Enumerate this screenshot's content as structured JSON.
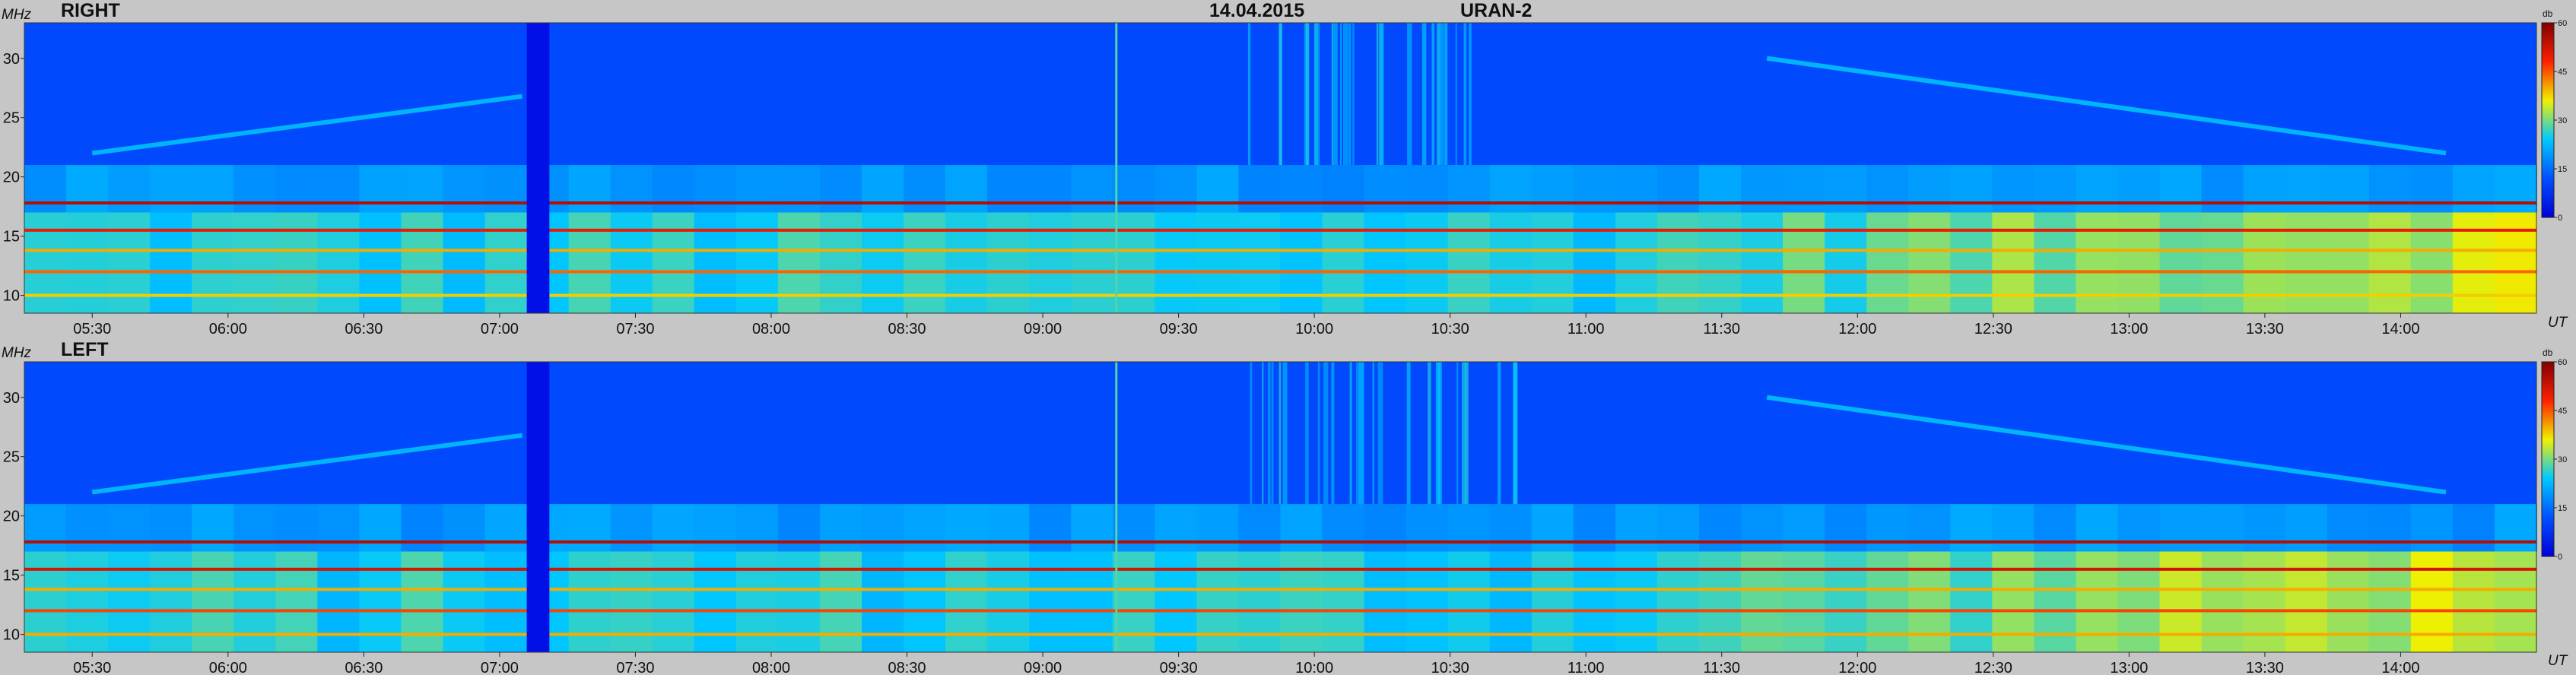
{
  "header": {
    "date": "14.04.2015",
    "instrument": "URAN-2"
  },
  "colors": {
    "background": "#c6c6c6",
    "colormap": [
      "#0000d8",
      "#0050ff",
      "#00c8ff",
      "#f0f000",
      "#ff2000",
      "#800000"
    ]
  },
  "chart_data": [
    {
      "type": "heatmap",
      "panel_title": "RIGHT",
      "ylabel": "MHz",
      "xlabel": "UT",
      "ylim": [
        8.5,
        33
      ],
      "yticks": [
        10,
        15,
        20,
        25,
        30
      ],
      "xlim": [
        "05:15",
        "14:30"
      ],
      "xticks": [
        "05:30",
        "06:00",
        "06:30",
        "07:00",
        "07:30",
        "08:00",
        "08:30",
        "09:00",
        "09:30",
        "10:00",
        "10:30",
        "11:00",
        "11:30",
        "12:00",
        "12:30",
        "13:00",
        "13:30",
        "14:00"
      ],
      "colorbar": {
        "label": "db",
        "ticks": [
          0,
          15,
          30,
          45,
          60
        ],
        "range": [
          0,
          60
        ]
      },
      "gap": {
        "start": "07:06",
        "end": "07:11"
      },
      "bands": [
        {
          "freq": 17.8,
          "level": 55
        },
        {
          "freq": 15.5,
          "level": 50
        },
        {
          "freq": 12.0,
          "level": 44
        },
        {
          "freq": 13.8,
          "level": 40
        },
        {
          "freq": 10.0,
          "level": 38
        }
      ],
      "drifting_bursts": [
        {
          "start": "05:30",
          "end": "07:05",
          "freq_start": 22.0,
          "freq_end": 26.8
        },
        {
          "start": "11:40",
          "end": "14:10",
          "freq_start": 30.0,
          "freq_end": 22.0
        }
      ]
    },
    {
      "type": "heatmap",
      "panel_title": "LEFT",
      "ylabel": "MHz",
      "xlabel": "UT",
      "ylim": [
        8.5,
        33
      ],
      "yticks": [
        10,
        15,
        20,
        25,
        30
      ],
      "xlim": [
        "05:15",
        "14:30"
      ],
      "xticks": [
        "05:30",
        "06:00",
        "06:30",
        "07:00",
        "07:30",
        "08:00",
        "08:30",
        "09:00",
        "09:30",
        "10:00",
        "10:30",
        "11:00",
        "11:30",
        "12:00",
        "12:30",
        "13:00",
        "13:30",
        "14:00"
      ],
      "colorbar": {
        "label": "db",
        "ticks": [
          0,
          15,
          30,
          45,
          60
        ],
        "range": [
          0,
          60
        ]
      },
      "gap": {
        "start": "07:06",
        "end": "07:11"
      },
      "bands": [
        {
          "freq": 17.8,
          "level": 55
        },
        {
          "freq": 15.5,
          "level": 52
        },
        {
          "freq": 12.0,
          "level": 46
        },
        {
          "freq": 13.8,
          "level": 40
        },
        {
          "freq": 10.0,
          "level": 40
        }
      ],
      "drifting_bursts": [
        {
          "start": "05:30",
          "end": "07:05",
          "freq_start": 22.0,
          "freq_end": 26.8
        },
        {
          "start": "11:40",
          "end": "14:10",
          "freq_start": 30.0,
          "freq_end": 22.0
        }
      ]
    }
  ]
}
